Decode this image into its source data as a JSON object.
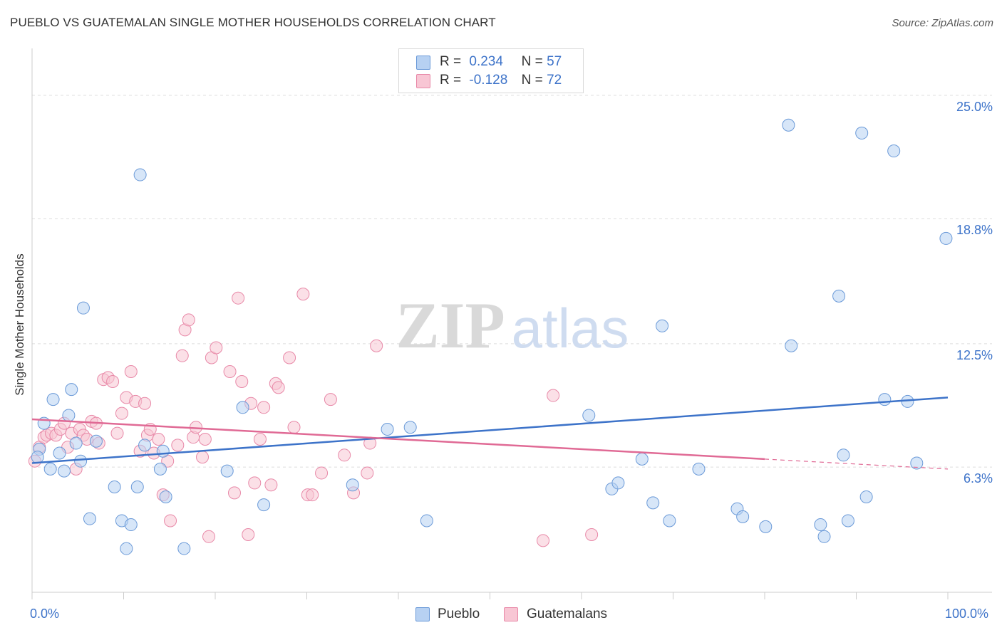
{
  "title": "PUEBLO VS GUATEMALAN SINGLE MOTHER HOUSEHOLDS CORRELATION CHART",
  "source": "Source: ZipAtlas.com",
  "watermark": {
    "zip": "ZIP",
    "atlas": "atlas"
  },
  "legend": {
    "r_label": "R =",
    "n_label": "N =",
    "rows": [
      {
        "name": "Pueblo",
        "r": "0.234",
        "n": "57",
        "fill": "#b7d1f2",
        "stroke": "#6b9ad8"
      },
      {
        "name": "Guatemalans",
        "r": "-0.128",
        "n": "72",
        "fill": "#f8c6d4",
        "stroke": "#e889a8"
      }
    ]
  },
  "chart_data": {
    "type": "scatter",
    "title": "PUEBLO VS GUATEMALAN SINGLE MOTHER HOUSEHOLDS CORRELATION CHART",
    "xlabel": "",
    "ylabel": "Single Mother Households",
    "x_tick_labels": [
      "0.0%",
      "100.0%"
    ],
    "y_tick_labels": [
      "6.3%",
      "12.5%",
      "18.8%",
      "25.0%"
    ],
    "y_ticks": [
      6.3,
      12.5,
      18.8,
      25.0
    ],
    "xlim": [
      0,
      100
    ],
    "ylim": [
      0,
      27
    ],
    "grid": true,
    "legend_position": "top-center",
    "colors": {
      "pueblo": "#3d73c9",
      "guatemalans": "#e06a95"
    },
    "series": [
      {
        "name": "Pueblo",
        "r": 0.234,
        "n": 57,
        "trend": {
          "x": [
            0,
            100
          ],
          "y": [
            6.5,
            9.8
          ]
        },
        "points": [
          [
            0.8,
            7.2
          ],
          [
            1.3,
            8.5
          ],
          [
            2.0,
            6.2
          ],
          [
            2.3,
            9.7
          ],
          [
            3.0,
            7.0
          ],
          [
            3.5,
            6.1
          ],
          [
            4.0,
            8.9
          ],
          [
            4.3,
            10.2
          ],
          [
            4.8,
            7.5
          ],
          [
            5.3,
            6.6
          ],
          [
            5.6,
            14.3
          ],
          [
            6.3,
            3.7
          ],
          [
            7.0,
            7.6
          ],
          [
            9.0,
            5.3
          ],
          [
            9.8,
            3.6
          ],
          [
            10.3,
            2.2
          ],
          [
            10.8,
            3.4
          ],
          [
            11.5,
            5.3
          ],
          [
            11.8,
            21.0
          ],
          [
            12.3,
            7.4
          ],
          [
            14.0,
            6.2
          ],
          [
            14.3,
            7.1
          ],
          [
            14.6,
            4.8
          ],
          [
            16.6,
            2.2
          ],
          [
            21.3,
            6.1
          ],
          [
            23.0,
            9.3
          ],
          [
            25.3,
            4.4
          ],
          [
            35.0,
            5.4
          ],
          [
            38.8,
            8.2
          ],
          [
            41.3,
            8.3
          ],
          [
            43.1,
            3.6
          ],
          [
            60.8,
            8.9
          ],
          [
            63.3,
            5.2
          ],
          [
            64.0,
            5.5
          ],
          [
            66.6,
            6.7
          ],
          [
            67.8,
            4.5
          ],
          [
            68.8,
            13.4
          ],
          [
            69.6,
            3.6
          ],
          [
            72.8,
            6.2
          ],
          [
            77.0,
            4.2
          ],
          [
            77.6,
            3.8
          ],
          [
            80.1,
            3.3
          ],
          [
            82.6,
            23.5
          ],
          [
            82.9,
            12.4
          ],
          [
            86.1,
            3.4
          ],
          [
            86.5,
            2.8
          ],
          [
            88.1,
            14.9
          ],
          [
            88.6,
            6.9
          ],
          [
            89.1,
            3.6
          ],
          [
            90.6,
            23.1
          ],
          [
            91.1,
            4.8
          ],
          [
            93.1,
            9.7
          ],
          [
            94.1,
            22.2
          ],
          [
            95.6,
            9.6
          ],
          [
            96.6,
            6.5
          ],
          [
            99.8,
            17.8
          ],
          [
            0.6,
            6.8
          ]
        ]
      },
      {
        "name": "Guatemalans",
        "r": -0.128,
        "n": 72,
        "trend": {
          "x": [
            0,
            80
          ],
          "y": [
            8.7,
            6.7
          ]
        },
        "trend_dashed": {
          "x": [
            80,
            100
          ],
          "y": [
            6.7,
            6.2
          ]
        },
        "points": [
          [
            0.3,
            6.6
          ],
          [
            0.8,
            7.3
          ],
          [
            1.3,
            7.8
          ],
          [
            1.6,
            7.9
          ],
          [
            2.1,
            8.0
          ],
          [
            2.6,
            7.9
          ],
          [
            3.1,
            8.2
          ],
          [
            3.5,
            8.5
          ],
          [
            3.9,
            7.3
          ],
          [
            4.3,
            8.0
          ],
          [
            4.8,
            6.2
          ],
          [
            5.2,
            8.2
          ],
          [
            5.6,
            7.9
          ],
          [
            6.0,
            7.7
          ],
          [
            6.5,
            8.6
          ],
          [
            7.0,
            8.5
          ],
          [
            7.3,
            7.5
          ],
          [
            7.8,
            10.7
          ],
          [
            8.3,
            10.8
          ],
          [
            8.8,
            10.6
          ],
          [
            9.3,
            8.0
          ],
          [
            9.8,
            9.0
          ],
          [
            10.3,
            9.8
          ],
          [
            10.8,
            11.1
          ],
          [
            11.3,
            9.6
          ],
          [
            11.8,
            7.1
          ],
          [
            12.3,
            9.5
          ],
          [
            12.6,
            7.9
          ],
          [
            12.9,
            8.2
          ],
          [
            13.3,
            7.0
          ],
          [
            13.8,
            7.7
          ],
          [
            14.3,
            4.9
          ],
          [
            14.8,
            6.6
          ],
          [
            15.1,
            3.6
          ],
          [
            15.9,
            7.4
          ],
          [
            16.4,
            11.9
          ],
          [
            16.7,
            13.2
          ],
          [
            17.1,
            13.7
          ],
          [
            17.6,
            7.8
          ],
          [
            17.9,
            8.3
          ],
          [
            18.6,
            6.8
          ],
          [
            18.9,
            7.7
          ],
          [
            19.3,
            2.8
          ],
          [
            19.6,
            11.8
          ],
          [
            20.1,
            12.3
          ],
          [
            21.6,
            11.1
          ],
          [
            22.1,
            5.0
          ],
          [
            22.5,
            14.8
          ],
          [
            22.9,
            10.6
          ],
          [
            23.6,
            2.9
          ],
          [
            23.9,
            9.5
          ],
          [
            24.3,
            5.5
          ],
          [
            24.9,
            7.7
          ],
          [
            25.3,
            9.3
          ],
          [
            26.1,
            5.4
          ],
          [
            26.6,
            10.5
          ],
          [
            26.9,
            10.3
          ],
          [
            28.1,
            11.8
          ],
          [
            28.6,
            8.3
          ],
          [
            29.6,
            15.0
          ],
          [
            30.1,
            4.9
          ],
          [
            30.6,
            4.9
          ],
          [
            31.6,
            6.0
          ],
          [
            32.6,
            9.7
          ],
          [
            34.1,
            6.9
          ],
          [
            35.1,
            5.0
          ],
          [
            36.6,
            6.0
          ],
          [
            36.9,
            7.5
          ],
          [
            37.6,
            12.4
          ],
          [
            55.8,
            2.6
          ],
          [
            56.9,
            9.9
          ],
          [
            61.1,
            2.9
          ]
        ]
      }
    ]
  }
}
